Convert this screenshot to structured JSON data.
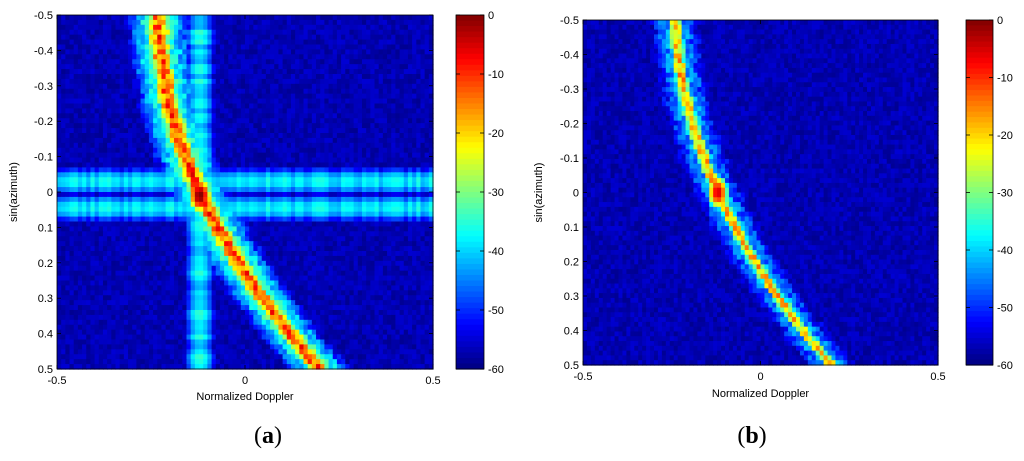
{
  "chart_data": [
    {
      "type": "heatmap",
      "panel_label": "a",
      "xlabel": "Normalized Doppler",
      "ylabel": "sin(azimuth)",
      "xlim": [
        -0.5,
        0.5
      ],
      "ylim": [
        -0.5,
        0.5
      ],
      "y_reversed": true,
      "x_ticks": [
        "-0.5",
        "0",
        "0.5"
      ],
      "y_ticks": [
        "-0.5",
        "-0.4",
        "-0.3",
        "-0.2",
        "-0.1",
        "0",
        "0.1",
        "0.2",
        "0.3",
        "0.4",
        "0.5"
      ],
      "colorbar": {
        "range": [
          -60,
          0
        ],
        "ticks": [
          "0",
          "-10",
          "-20",
          "-30",
          "-40",
          "-50",
          "-60"
        ],
        "colormap": "jet"
      },
      "background_db": -57,
      "features": {
        "ridge": {
          "x_at_top": -0.23,
          "x_at_center": -0.12,
          "x_at_bottom": 0.2,
          "width": 0.018,
          "peak_db": -12,
          "sidelobe_db": -33
        },
        "vertical_stripe": {
          "x": -0.12,
          "width": 0.022,
          "level_db": -38
        },
        "horizontal_stripes": [
          {
            "y": -0.03,
            "width": 0.022,
            "level_db": -38
          },
          {
            "y": 0.045,
            "width": 0.022,
            "level_db": -38
          }
        ],
        "peak": {
          "x": -0.12,
          "y": 0.01,
          "db": 0
        }
      }
    },
    {
      "type": "heatmap",
      "panel_label": "b",
      "xlabel": "Normalized Doppler",
      "ylabel": "sin(azimuth)",
      "xlim": [
        -0.5,
        0.5
      ],
      "ylim": [
        -0.5,
        0.5
      ],
      "y_reversed": true,
      "x_ticks": [
        "-0.5",
        "0",
        "0.5"
      ],
      "y_ticks": [
        "-0.5",
        "-0.4",
        "-0.3",
        "-0.2",
        "-0.1",
        "0",
        "0.1",
        "0.2",
        "0.3",
        "0.4",
        "0.5"
      ],
      "colorbar": {
        "range": [
          -60,
          0
        ],
        "ticks": [
          "0",
          "-10",
          "-20",
          "-30",
          "-40",
          "-50",
          "-60"
        ],
        "colormap": "jet"
      },
      "background_db": -57,
      "features": {
        "ridge": {
          "x_at_top": -0.24,
          "x_at_center": -0.12,
          "x_at_bottom": 0.2,
          "width": 0.012,
          "peak_db": -18,
          "sidelobe_db": -42
        },
        "peak": {
          "x": -0.12,
          "y": 0.0,
          "db": -5
        }
      }
    }
  ],
  "colors": {
    "background": "#ffffff",
    "text": "#000000"
  }
}
